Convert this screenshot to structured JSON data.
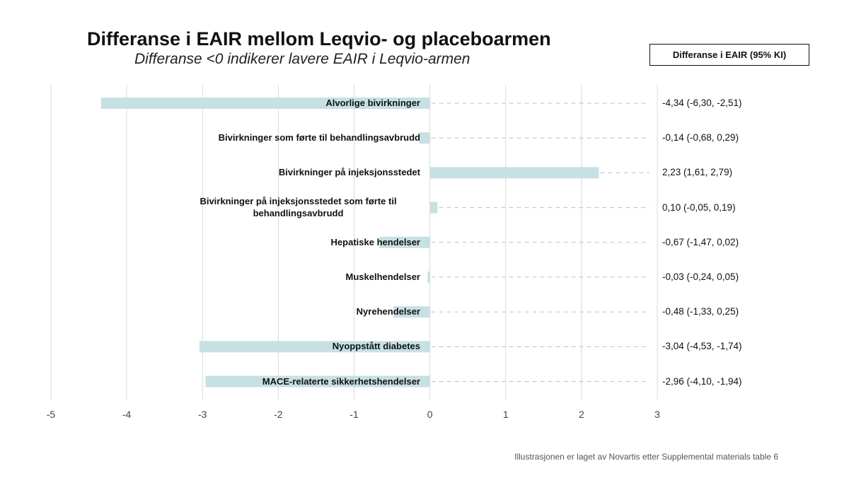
{
  "chart_data": {
    "type": "bar",
    "orientation": "horizontal",
    "title": "Differanse i EAIR mellom Leqvio- og placeboarmen",
    "subtitle": "Differanse <0 indikerer lavere EAIR i Leqvio-armen",
    "legend_label": "Differanse i EAIR (95% KI)",
    "xlim": [
      -5,
      3
    ],
    "xticks": [
      "-5",
      "-4",
      "-3",
      "-2",
      "-1",
      "0",
      "1",
      "2",
      "3"
    ],
    "grid": true,
    "bar_color": "#c7e0e3",
    "categories": [
      "Alvorlige bivirkninger",
      "Bivirkninger som førte til behandlingsavbrudd",
      "Bivirkninger på injeksjonsstedet",
      "Bivirkninger på injeksjonsstedet som førte til behandlingsavbrudd",
      "Hepatiske hendelser",
      "Muskelhendelser",
      "Nyrehendelser",
      "Nyoppstått diabetes",
      "MACE-relaterte sikkerhetshendelser"
    ],
    "values": [
      -4.34,
      -0.14,
      2.23,
      0.1,
      -0.67,
      -0.03,
      -0.48,
      -3.04,
      -2.96
    ],
    "value_labels": [
      "-4,34 (-6,30, -2,51)",
      "-0,14 (-0,68, 0,29)",
      "2,23 (1,61, 2,79)",
      "0,10 (-0,05, 0,19)",
      "-0,67 (-1,47, 0,02)",
      "-0,03 (-0,24, 0,05)",
      "-0,48 (-1,33, 0,25)",
      "-3,04 (-4,53, -1,74)",
      "-2,96 (-4,10, -1,94)"
    ]
  },
  "footnote": "Illustrasjonen er laget av Novartis etter Supplemental materials table 6"
}
